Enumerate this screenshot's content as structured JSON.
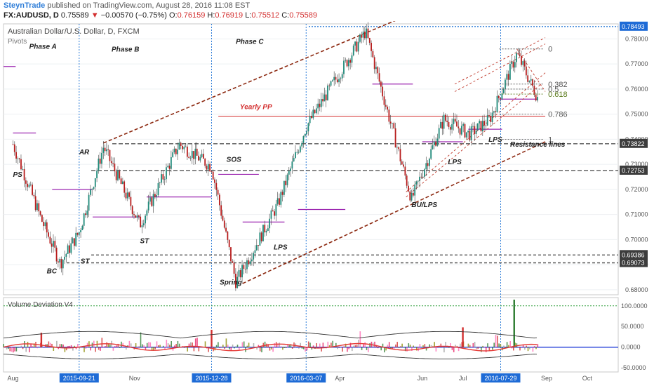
{
  "header": {
    "publisher": "SteynTrade",
    "published_text": "published on TradingView.com, August 28, 2016 11:08 EST",
    "symbol": "FX:AUDUSD, D",
    "last": "0.75589",
    "change": "−0.00570 (−0.75%)",
    "open_label": "O:",
    "open": "0.76159",
    "high_label": "H:",
    "high": "0.76919",
    "low_label": "L:",
    "low": "0.75512",
    "close_label": "C:",
    "close": "0.75589"
  },
  "legend": {
    "title": "Australian Dollar/U.S. Dollar, D, FXCM",
    "pivots": "Pivots"
  },
  "volume_panel": {
    "title": "Volume Deviation  V4"
  },
  "colors": {
    "up": "#26a69a",
    "down": "#d32f2f",
    "pivot": "#9c27b0",
    "channel": "#8d2a12",
    "phase_line": "#2f7ed8",
    "hline": "#555555",
    "volume_line": "#e53935"
  },
  "chart_data": [
    {
      "type": "candlestick",
      "title": "Australian Dollar/U.S. Dollar, D, FXCM",
      "ylim": [
        0.678,
        0.786
      ],
      "y_ticks": [
        "0.78000",
        "0.77000",
        "0.76000",
        "0.75000",
        "0.74000",
        "0.73000",
        "0.72000",
        "0.71000",
        "0.70000",
        "0.69000",
        "0.68000"
      ],
      "x_ticks": [
        "Aug",
        "2015-09-21",
        "Nov",
        "2015-12-28",
        "2016-03-07",
        "Apr",
        "Jun",
        "Jul",
        "2016-07-29",
        "Sep",
        "Oct"
      ],
      "price_flags": [
        "0.78493",
        "0.73822",
        "0.72753",
        "0.69386",
        "0.69073"
      ],
      "key_points": [
        {
          "date": "2015-08-03",
          "close": 0.738
        },
        {
          "date": "2015-08-24",
          "close": 0.708
        },
        {
          "date": "2015-09-07",
          "close": 0.6905
        },
        {
          "date": "2015-09-21",
          "close": 0.703
        },
        {
          "date": "2015-10-09",
          "close": 0.737
        },
        {
          "date": "2015-11-05",
          "close": 0.706
        },
        {
          "date": "2015-12-04",
          "close": 0.738
        },
        {
          "date": "2015-12-28",
          "close": 0.729
        },
        {
          "date": "2016-01-15",
          "close": 0.683
        },
        {
          "date": "2016-02-15",
          "close": 0.714
        },
        {
          "date": "2016-03-07",
          "close": 0.745
        },
        {
          "date": "2016-04-20",
          "close": 0.783
        },
        {
          "date": "2016-05-24",
          "close": 0.716
        },
        {
          "date": "2016-06-17",
          "close": 0.748
        },
        {
          "date": "2016-07-06",
          "close": 0.742
        },
        {
          "date": "2016-07-21",
          "close": 0.748
        },
        {
          "date": "2016-08-10",
          "close": 0.774
        },
        {
          "date": "2016-08-26",
          "close": 0.7559
        }
      ],
      "fib_levels": [
        {
          "label": "0",
          "value": 0.776
        },
        {
          "label": "0.382",
          "value": 0.762
        },
        {
          "label": "0.5",
          "value": 0.76
        },
        {
          "label": "0.618",
          "value": 0.758
        },
        {
          "label": "0.786",
          "value": 0.75
        },
        {
          "label": "1",
          "value": 0.74
        }
      ],
      "annotations": [
        "Phase A",
        "Phase B",
        "Phase C",
        "PS",
        "AR",
        "BC",
        "ST",
        "ST",
        "SOS",
        "Spring",
        "LPS",
        "Yearly PP",
        "BU/LPS",
        "LPS",
        "LPS",
        "Resistance lines"
      ]
    },
    {
      "type": "bar",
      "title": "Volume Deviation  V4",
      "ylim": [
        -60,
        120
      ],
      "y_ticks": [
        "100.0000",
        "50.0000",
        "0.0000",
        "-50.0000"
      ]
    }
  ]
}
